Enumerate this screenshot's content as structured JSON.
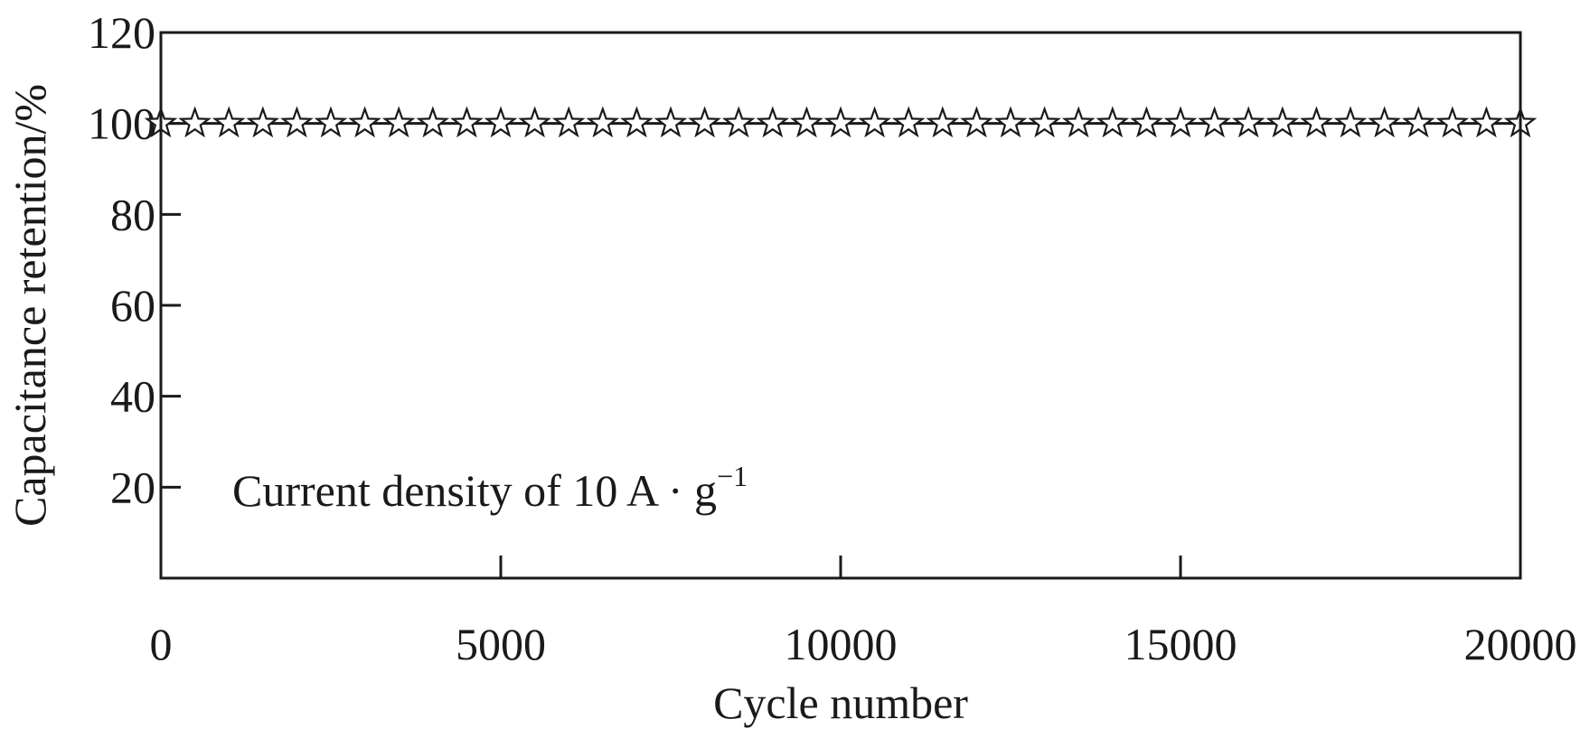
{
  "chart_data": {
    "type": "line",
    "xlabel": "Cycle number",
    "ylabel": "Capacitance retention/%",
    "xlim": [
      0,
      20000
    ],
    "ylim": [
      0,
      120
    ],
    "xticks": [
      0,
      5000,
      10000,
      15000,
      20000
    ],
    "yticks": [
      20,
      40,
      60,
      80,
      100,
      120
    ],
    "x_tick_labels": [
      "0",
      "5000",
      "10000",
      "15000",
      "20000"
    ],
    "y_tick_labels": [
      "20",
      "40",
      "60",
      "80",
      "100",
      "120"
    ],
    "grid": false,
    "marker": "open-star",
    "annotation": {
      "text": "Current density of 10 A · g",
      "superscript": "−1"
    },
    "series": [
      {
        "x": [
          0,
          500,
          1000,
          1500,
          2000,
          2500,
          3000,
          3500,
          4000,
          4500,
          5000,
          5500,
          6000,
          6500,
          7000,
          7500,
          8000,
          8500,
          9000,
          9500,
          10000,
          10500,
          11000,
          11500,
          12000,
          12500,
          13000,
          13500,
          14000,
          14500,
          15000,
          15500,
          16000,
          16500,
          17000,
          17500,
          18000,
          18500,
          19000,
          19500,
          20000
        ],
        "values": [
          100,
          100,
          100,
          100,
          100,
          100,
          100,
          100,
          100,
          100,
          100,
          100,
          100,
          100,
          100,
          100,
          100,
          100,
          100,
          100,
          100,
          100,
          100,
          100,
          100,
          100,
          100,
          100,
          100,
          100,
          100,
          100,
          100,
          100,
          100,
          100,
          100,
          100,
          100,
          100,
          100
        ]
      }
    ]
  }
}
